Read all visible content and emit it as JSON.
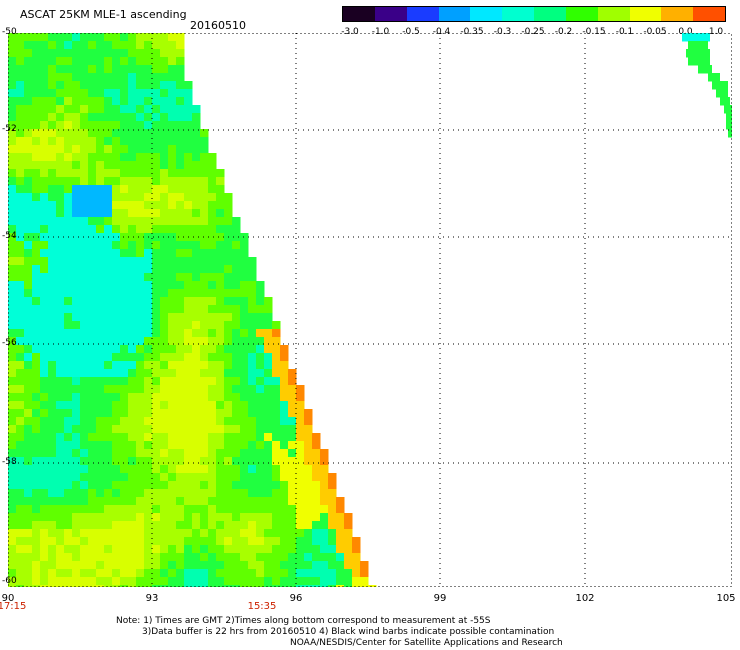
{
  "header": {
    "title": "ASCAT 25KM MLE-1 ascending",
    "date": "20160510"
  },
  "colorbar": {
    "ticks": [
      "-3.0",
      "-1.0",
      "-0.5",
      "-0.4",
      "-0.35",
      "-0.3",
      "-0.25",
      "-0.2",
      "-0.15",
      "-0.1",
      "-0.05",
      "0.0",
      "1.0"
    ],
    "colors": [
      "#1a0022",
      "#3a0088",
      "#1a3cff",
      "#00a0ff",
      "#00e8ff",
      "#00ffd0",
      "#00ff80",
      "#30ff00",
      "#a0ff00",
      "#f0ff00",
      "#ffb000",
      "#ff5000"
    ]
  },
  "map": {
    "lat_labels": [
      "-50",
      "-52",
      "-54",
      "-56",
      "-58",
      "-60"
    ],
    "lon_labels": [
      "90",
      "93",
      "96",
      "99",
      "102",
      "105"
    ],
    "time_labels": [
      "17:15",
      "15:35"
    ],
    "lat_range": [
      -60,
      -50
    ],
    "lon_range": [
      90,
      105
    ],
    "field_description_levels": {
      "background_dominant": "-0.2",
      "cyan_areas": "-0.3",
      "yellow_orange_areas": "-0.05 to 0.0"
    }
  },
  "notes": {
    "line1": "Note: 1) Times are GMT 2)Times along bottom correspond to measurement at -55S",
    "line2": "3)Data buffer is 22 hrs from 20160510 4) Black wind barbs indicate possible contamination",
    "line3": "NOAA/NESDIS/Center for Satellite Applications and Research"
  }
}
